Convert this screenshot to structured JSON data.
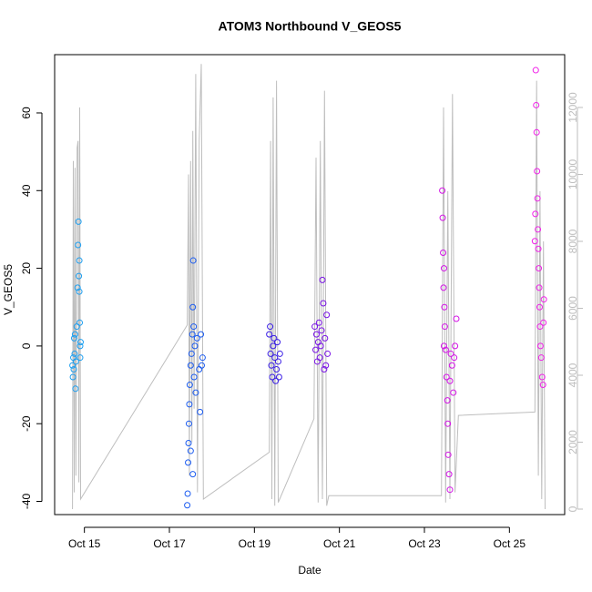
{
  "chart_data": {
    "type": "scatter",
    "title": "ATOM3 Northbound V_GEOS5",
    "x_label": "Date",
    "y_label": "V_GEOS5",
    "xlim": [
      14.3,
      26.3
    ],
    "xticks": [
      {
        "value": 15,
        "label": "Oct 15"
      },
      {
        "value": 17,
        "label": "Oct 17"
      },
      {
        "value": 19,
        "label": "Oct 19"
      },
      {
        "value": 21,
        "label": "Oct 21"
      },
      {
        "value": 23,
        "label": "Oct 23"
      },
      {
        "value": 25,
        "label": "Oct 25"
      }
    ],
    "ylim": [
      -43.4,
      75
    ],
    "yticks": [
      -40,
      -20,
      0,
      20,
      40,
      60
    ],
    "y2lim": [
      -163,
      13578
    ],
    "y2ticks": [
      0,
      2000,
      4000,
      6000,
      8000,
      10000,
      12000
    ],
    "y2_color": "#bebebe",
    "series": [
      {
        "color": "#1e9ff0",
        "x": [
          14.72,
          14.73,
          14.74,
          14.75,
          14.76,
          14.77,
          14.78,
          14.79,
          14.8,
          14.82,
          14.84,
          14.85,
          14.86,
          14.87,
          14.88,
          14.88,
          14.89,
          14.9,
          14.9,
          14.91
        ],
        "values": [
          -5,
          -8,
          -3,
          -6,
          2,
          -2,
          3,
          -11,
          -4,
          5,
          15,
          26,
          32,
          18,
          14,
          22,
          6,
          0,
          -3,
          1
        ]
      },
      {
        "color": "#1c5cf0",
        "x": [
          17.42,
          17.43,
          17.44,
          17.45,
          17.46,
          17.47,
          17.48,
          17.5,
          17.52,
          17.54,
          17.55,
          17.56,
          17.57,
          17.58,
          17.6,
          17.62,
          17.65,
          17.7,
          17.72,
          17.74,
          17.76,
          17.78,
          17.55,
          17.5
        ],
        "values": [
          -41,
          -38,
          -30,
          -25,
          -20,
          -15,
          -10,
          -5,
          -2,
          3,
          10,
          22,
          5,
          -8,
          0,
          -12,
          2,
          -6,
          -17,
          3,
          -5,
          -3,
          -33,
          -27
        ]
      },
      {
        "color": "#3a1ee6",
        "x": [
          19.35,
          19.37,
          19.38,
          19.4,
          19.42,
          19.44,
          19.46,
          19.48,
          19.5,
          19.52,
          19.54,
          19.56,
          19.58,
          19.6
        ],
        "values": [
          3,
          5,
          -2,
          -5,
          -8,
          0,
          2,
          -3,
          -9,
          -6,
          1,
          -4,
          -8,
          -2
        ]
      },
      {
        "color": "#7a14e6",
        "x": [
          20.42,
          20.44,
          20.46,
          20.48,
          20.5,
          20.52,
          20.54,
          20.56,
          20.58,
          20.6,
          20.62,
          20.64,
          20.66,
          20.68,
          20.7,
          20.72
        ],
        "values": [
          5,
          -1,
          3,
          -4,
          1,
          6,
          -3,
          0,
          4,
          17,
          11,
          -6,
          2,
          -5,
          8,
          -2
        ]
      },
      {
        "color": "#d414e6",
        "x": [
          23.42,
          23.43,
          23.44,
          23.45,
          23.46,
          23.47,
          23.48,
          23.5,
          23.52,
          23.54,
          23.55,
          23.56,
          23.58,
          23.6,
          23.6,
          23.62,
          23.65,
          23.68,
          23.7,
          23.72,
          23.75,
          23.46
        ],
        "values": [
          40,
          33,
          24,
          15,
          20,
          10,
          5,
          -1,
          -8,
          -14,
          -20,
          -28,
          -33,
          -37,
          -9,
          -2,
          -5,
          -12,
          -3,
          0,
          7,
          0
        ]
      },
      {
        "color": "#f020e8",
        "x": [
          25.62,
          25.63,
          25.64,
          25.65,
          25.66,
          25.67,
          25.68,
          25.69,
          25.7,
          25.71,
          25.72,
          25.73,
          25.75,
          25.77,
          25.79,
          25.8,
          25.81,
          25.6,
          25.61
        ],
        "values": [
          71,
          62,
          55,
          45,
          38,
          30,
          25,
          20,
          15,
          10,
          5,
          0,
          -3,
          -8,
          -10,
          6,
          12,
          27,
          34
        ]
      },
      {
        "type": "line",
        "axis": "y2",
        "color": "#bebebe",
        "x": [
          14.72,
          14.74,
          14.76,
          14.78,
          14.8,
          14.83,
          14.85,
          14.87,
          14.89,
          14.91,
          17.42,
          17.45,
          17.47,
          17.5,
          17.53,
          17.55,
          17.58,
          17.62,
          17.66,
          17.7,
          17.75,
          17.8,
          19.35,
          19.38,
          19.41,
          19.44,
          19.48,
          19.52,
          19.56,
          20.4,
          20.45,
          20.5,
          20.55,
          20.6,
          20.65,
          20.7,
          20.75,
          23.4,
          23.45,
          23.5,
          23.55,
          23.6,
          23.66,
          23.72,
          23.8,
          25.6,
          25.64,
          25.68,
          25.72,
          25.76,
          25.8,
          25.84
        ],
        "values": [
          0,
          10400,
          500,
          10200,
          1000,
          10800,
          11000,
          800,
          12000,
          300,
          5500,
          10000,
          1000,
          10400,
          2000,
          11300,
          3000,
          13000,
          500,
          11000,
          13300,
          300,
          1700,
          11000,
          300,
          12300,
          100,
          12800,
          200,
          2700,
          10500,
          200,
          11000,
          300,
          12500,
          100,
          400,
          400,
          12000,
          200,
          9500,
          300,
          12400,
          500,
          2800,
          2900,
          12800,
          1000,
          9500,
          300,
          8000,
          0
        ]
      }
    ]
  }
}
